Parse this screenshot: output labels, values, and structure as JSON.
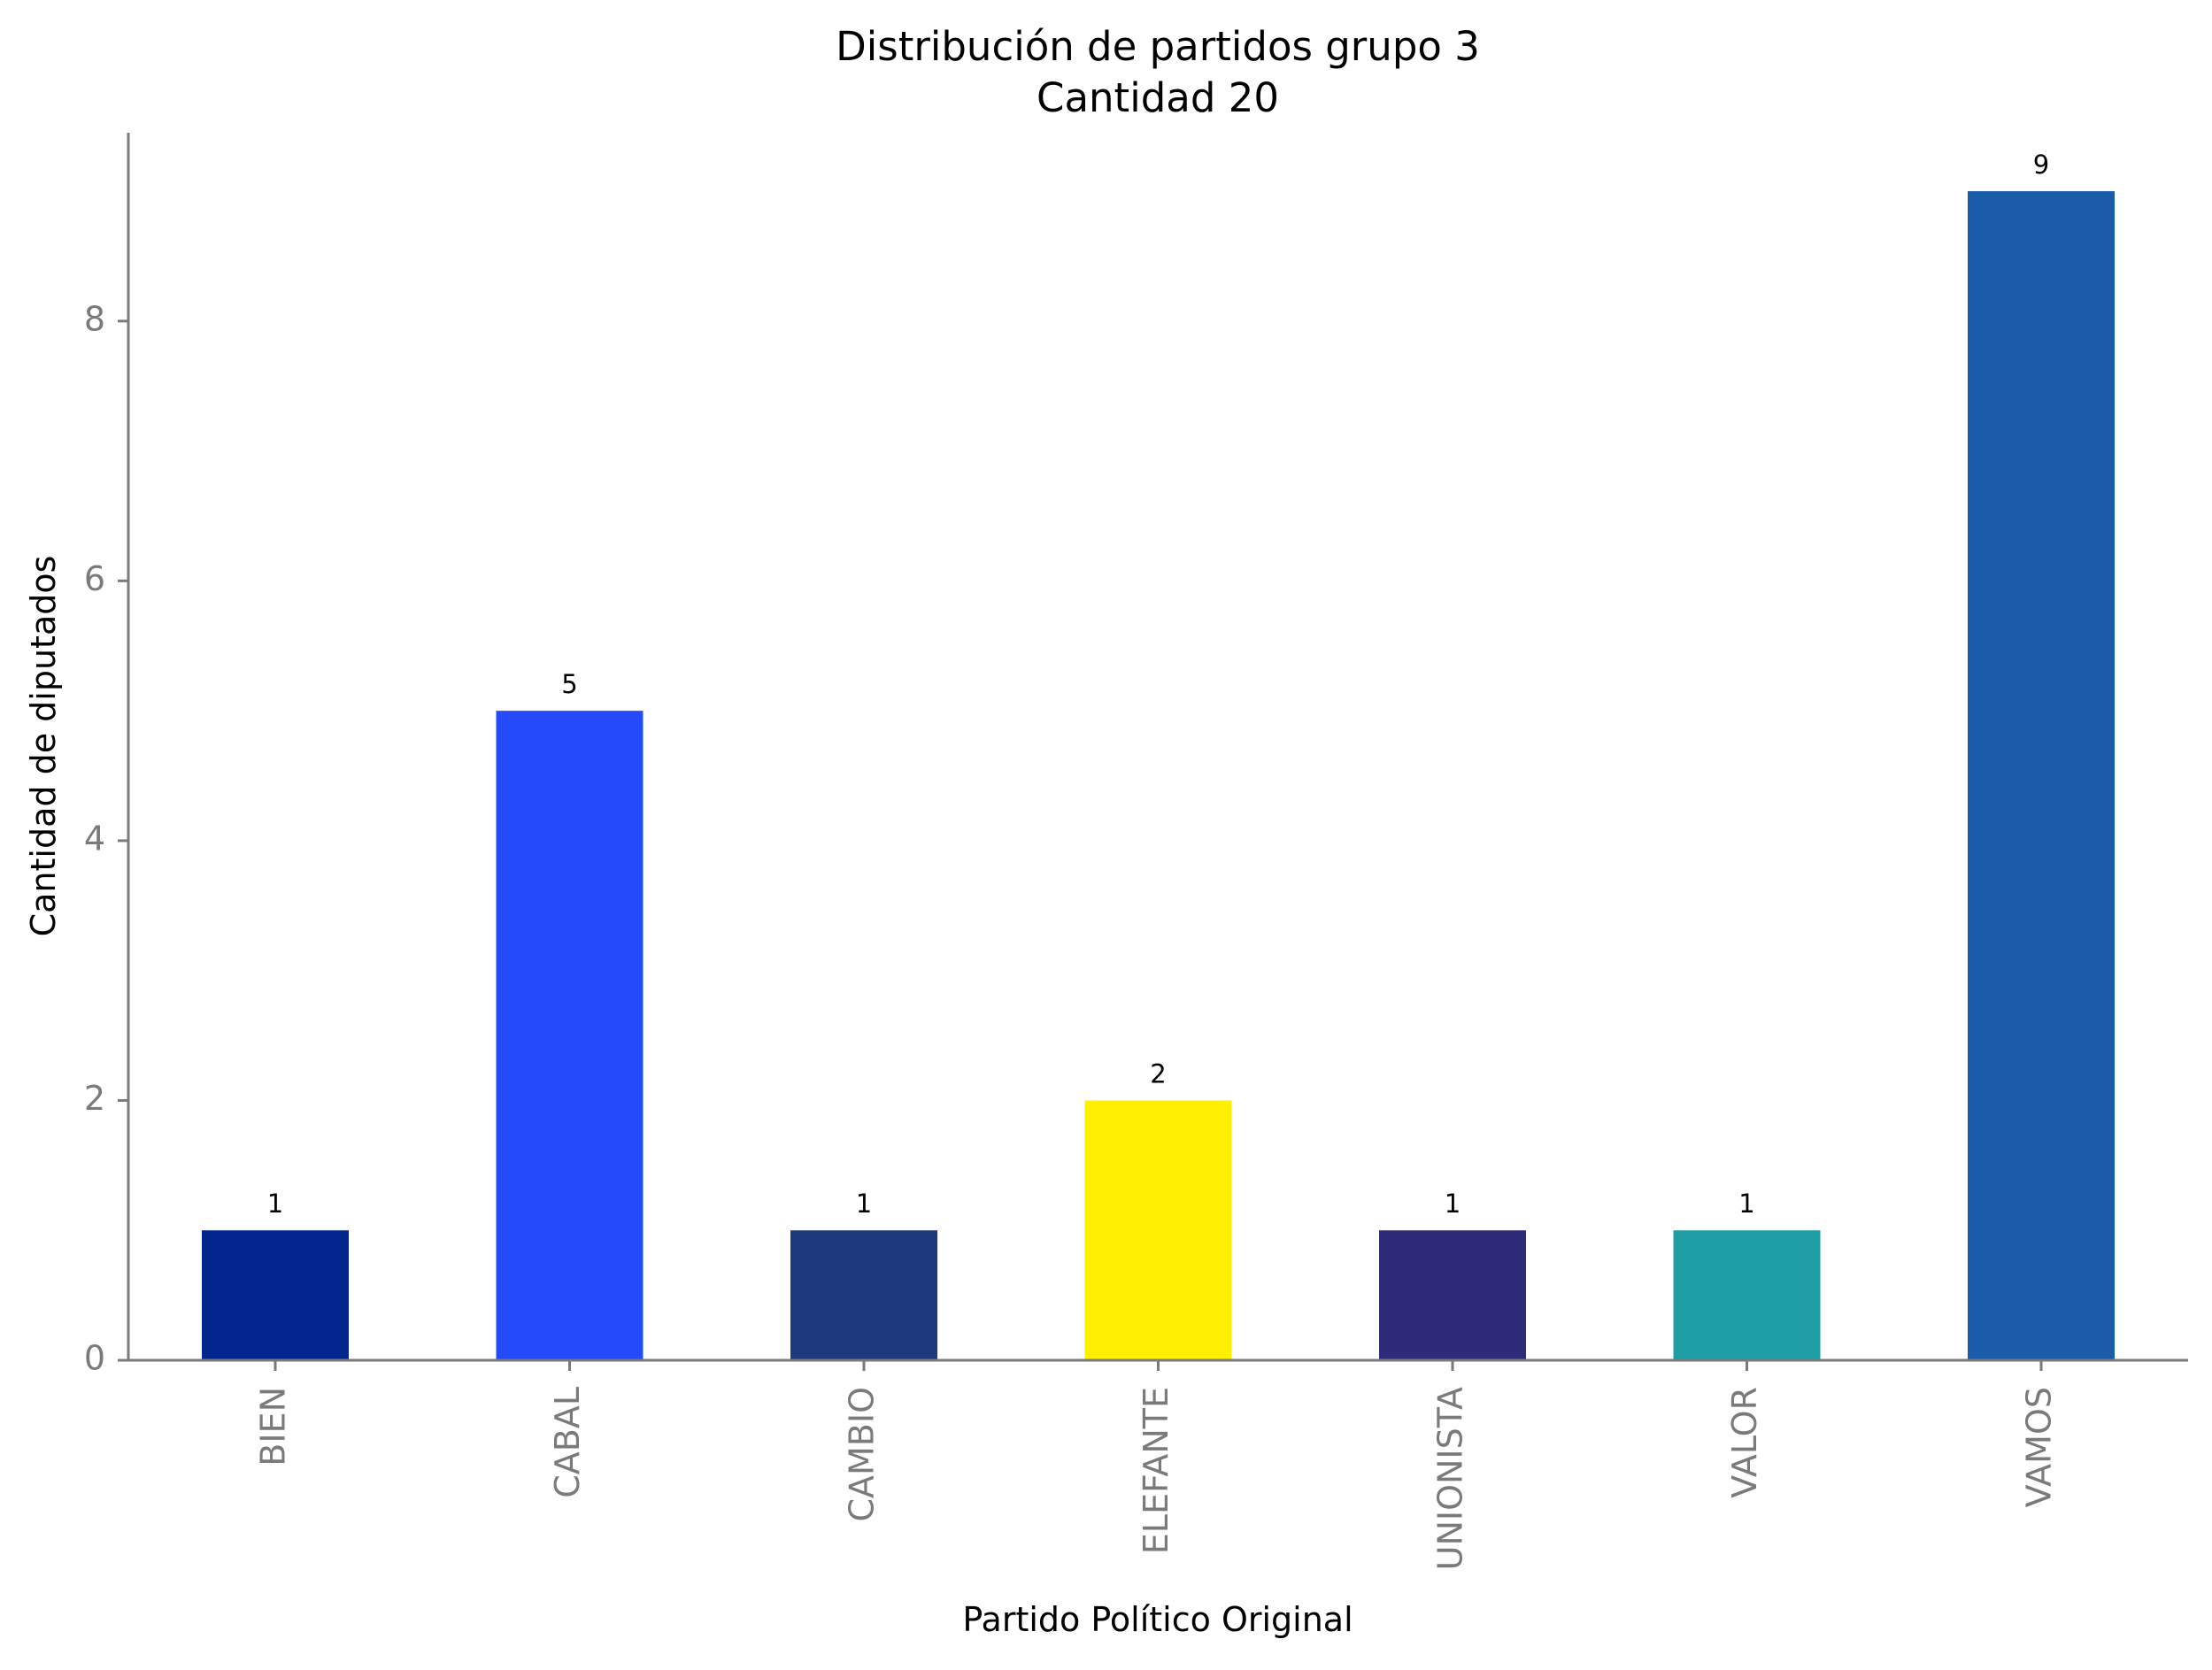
{
  "chart_data": {
    "type": "bar",
    "title": "Distribución de partidos grupo 3",
    "subtitle": "Cantidad 20",
    "xlabel": "Partido Político Original",
    "ylabel": "Cantidad de diputados",
    "categories": [
      "BIEN",
      "CABAL",
      "CAMBIO",
      "ELEFANTE",
      "UNIONISTA",
      "VALOR",
      "VAMOS"
    ],
    "values": [
      1,
      5,
      1,
      2,
      1,
      1,
      9
    ],
    "colors": [
      "#03268e",
      "#244afa",
      "#1e3a7a",
      "#ffef00",
      "#2e2b78",
      "#1f9fa5",
      "#1a5ca8"
    ],
    "data_labels": [
      "1",
      "5",
      "1",
      "2",
      "1",
      "1",
      "9"
    ],
    "yticks": [
      0,
      2,
      4,
      6,
      8
    ],
    "ytick_labels": [
      "0",
      "2",
      "4",
      "6",
      "8"
    ],
    "ylim": [
      0,
      9.45
    ],
    "grid": false,
    "legend": "none"
  }
}
